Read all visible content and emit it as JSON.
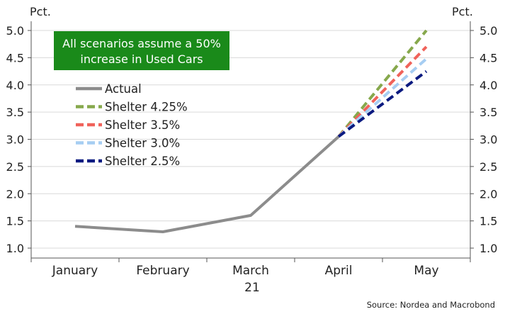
{
  "chart_data": {
    "type": "line",
    "title": "",
    "xlabel": "",
    "ylabel": "Pct.",
    "y2label": "Pct.",
    "ylim": [
      0.9,
      5.1
    ],
    "yticks": [
      "1.0",
      "1.5",
      "2.0",
      "2.5",
      "3.0",
      "3.5",
      "4.0",
      "4.5",
      "5.0"
    ],
    "ytick_values": [
      1.0,
      1.5,
      2.0,
      2.5,
      3.0,
      3.5,
      4.0,
      4.5,
      5.0
    ],
    "categories": [
      "January",
      "February",
      "March",
      "April",
      "May"
    ],
    "year_label": "21",
    "grid": true,
    "legend_position": "top-left",
    "series": [
      {
        "name": "Actual",
        "style": "solid",
        "color": "#8c8c8c",
        "values": [
          1.4,
          1.3,
          1.6,
          3.05,
          null
        ]
      },
      {
        "name": "Shelter 4.25%",
        "style": "dashed",
        "color": "#86a84c",
        "values": [
          null,
          null,
          null,
          3.05,
          5.0
        ]
      },
      {
        "name": "Shelter 3.5%",
        "style": "dashed",
        "color": "#f0625a",
        "values": [
          null,
          null,
          null,
          3.05,
          4.7
        ]
      },
      {
        "name": "Shelter 3.0%",
        "style": "dashed",
        "color": "#a6cdf2",
        "values": [
          null,
          null,
          null,
          3.05,
          4.48
        ]
      },
      {
        "name": "Shelter 2.5%",
        "style": "dashed",
        "color": "#0b1a80",
        "values": [
          null,
          null,
          null,
          3.05,
          4.25
        ]
      }
    ],
    "annotations": {
      "note_line1": "All scenarios assume a 50%",
      "note_line2": "increase in Used Cars",
      "note_color": "#1a8a1a"
    },
    "source": "Source: Nordea and Macrobond"
  }
}
